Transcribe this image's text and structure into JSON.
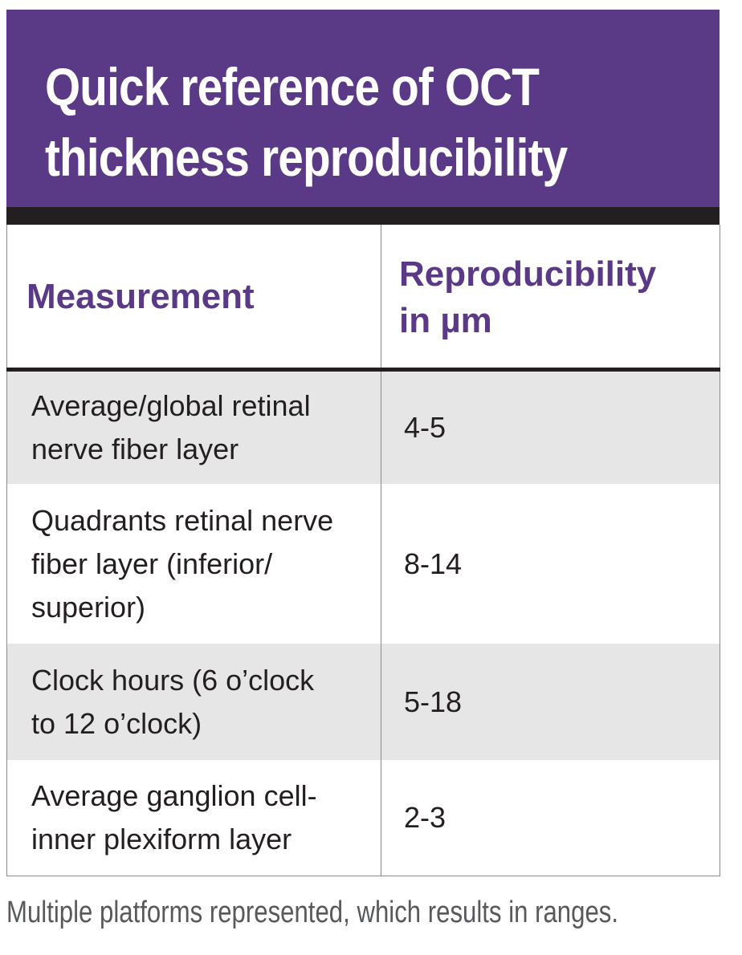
{
  "title": {
    "line1": "Quick reference of OCT",
    "line2": "thickness reproducibility"
  },
  "table": {
    "headers": {
      "measurement": "Measurement",
      "reproducibility_line1": "Reproducibility",
      "reproducibility_line2": "in µm"
    },
    "rows": [
      {
        "measurement_lines": [
          "Average/global retinal",
          "nerve fiber layer"
        ],
        "value": "4-5"
      },
      {
        "measurement_lines": [
          "Quadrants retinal nerve",
          "fiber layer (inferior/",
          "superior)"
        ],
        "value": "8-14"
      },
      {
        "measurement_lines": [
          "Clock hours (6 o’clock",
          "to 12 o’clock)"
        ],
        "value": "5-18"
      },
      {
        "measurement_lines": [
          "Average ganglion cell-",
          "inner plexiform layer"
        ],
        "value": "2-3"
      }
    ]
  },
  "footnote": "Multiple platforms represented, which results in ranges.",
  "colors": {
    "header_bg": "#5a3a86",
    "accent_text": "#5a3a86",
    "shaded_row": "#e6e6e7",
    "rule": "#231f20"
  }
}
